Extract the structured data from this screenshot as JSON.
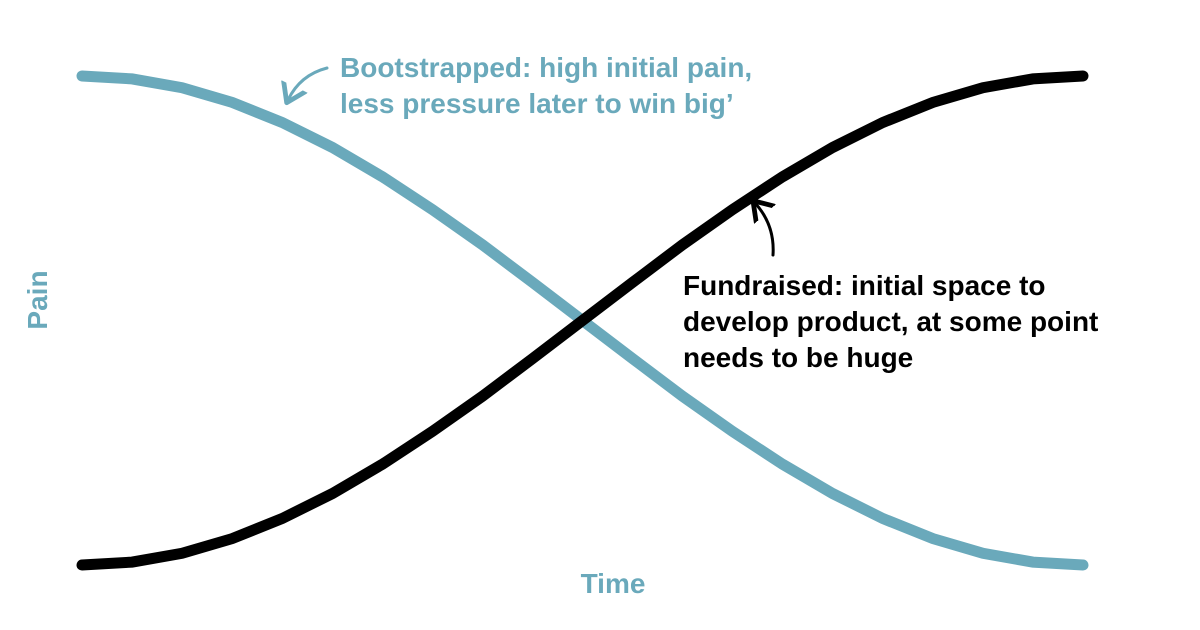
{
  "chart_data": {
    "type": "line",
    "title": "",
    "xlabel": "Time",
    "ylabel": "Pain",
    "xlim": [
      0,
      1
    ],
    "ylim": [
      0,
      1
    ],
    "grid": false,
    "legend": "none",
    "series": [
      {
        "key": "bootstrapped",
        "color": "#6aa9bb",
        "x": [
          0,
          0.05,
          0.1,
          0.15,
          0.2,
          0.25,
          0.3,
          0.35,
          0.4,
          0.45,
          0.5,
          0.55,
          0.6,
          0.65,
          0.7,
          0.75,
          0.8,
          0.85,
          0.9,
          0.95,
          1
        ],
        "y": [
          1,
          0.994,
          0.976,
          0.946,
          0.905,
          0.854,
          0.794,
          0.727,
          0.655,
          0.578,
          0.5,
          0.422,
          0.345,
          0.273,
          0.206,
          0.146,
          0.095,
          0.054,
          0.024,
          0.006,
          0
        ]
      },
      {
        "key": "fundraised",
        "color": "#000000",
        "x": [
          0,
          0.05,
          0.1,
          0.15,
          0.2,
          0.25,
          0.3,
          0.35,
          0.4,
          0.45,
          0.5,
          0.55,
          0.6,
          0.65,
          0.7,
          0.75,
          0.8,
          0.85,
          0.9,
          0.95,
          1
        ],
        "y": [
          0,
          0.006,
          0.024,
          0.054,
          0.095,
          0.146,
          0.206,
          0.273,
          0.345,
          0.422,
          0.5,
          0.578,
          0.655,
          0.727,
          0.794,
          0.854,
          0.905,
          0.946,
          0.976,
          0.994,
          1
        ]
      }
    ],
    "annotations": [
      {
        "key": "bootstrapped-note",
        "color": "#6aa9bb",
        "lines": [
          "Bootstrapped: high initial pain,",
          "less pressure later to win big’"
        ]
      },
      {
        "key": "fundraised-note",
        "color": "#000000",
        "lines": [
          "Fundraised: initial space to",
          "develop product, at some point",
          "needs to be huge"
        ]
      }
    ],
    "axis_color": "#6aa9bb"
  }
}
